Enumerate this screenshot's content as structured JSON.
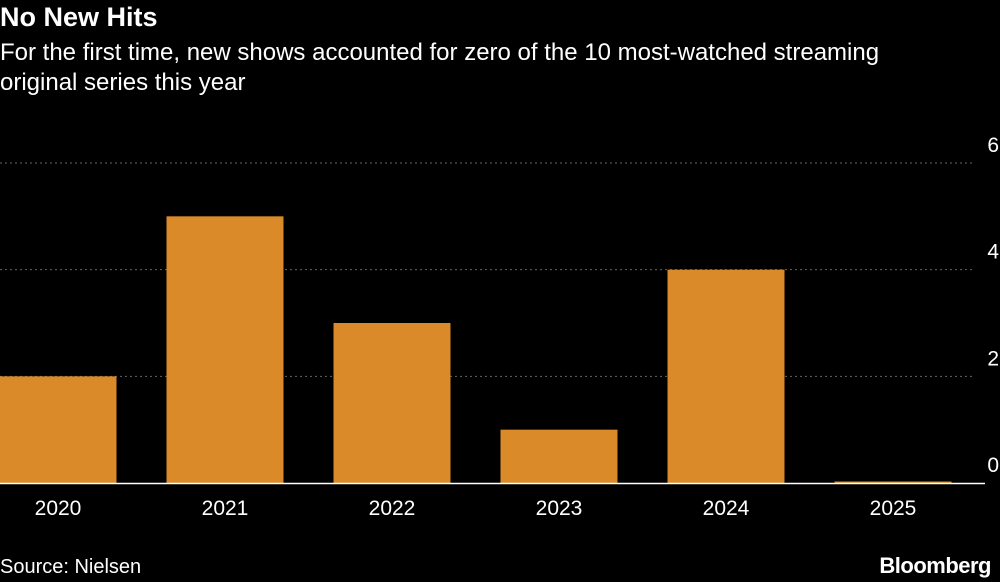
{
  "header": {
    "title": "No New Hits",
    "subtitle": "For the first time, new shows accounted for zero of the 10 most-watched streaming original series this year"
  },
  "footer": {
    "source": "Source: Nielsen",
    "logo": "Bloomberg"
  },
  "colors": {
    "background": "#000000",
    "bar": "#DA8A28",
    "grid": "#666666",
    "baseline": "#ffffff",
    "text": "#ffffff"
  },
  "chart_data": {
    "type": "bar",
    "title": "No New Hits",
    "subtitle": "For the first time, new shows accounted for zero of the 10 most-watched streaming original series this year",
    "categories": [
      "2020",
      "2021",
      "2022",
      "2023",
      "2024",
      "2025"
    ],
    "values": [
      2,
      5,
      3,
      1,
      4,
      0
    ],
    "xlabel": "",
    "ylabel": "",
    "ylim": [
      0,
      6
    ],
    "yticks": [
      "0",
      "2",
      "4",
      "6"
    ],
    "grid": true,
    "yaxis_position": "right",
    "legend": "none"
  }
}
